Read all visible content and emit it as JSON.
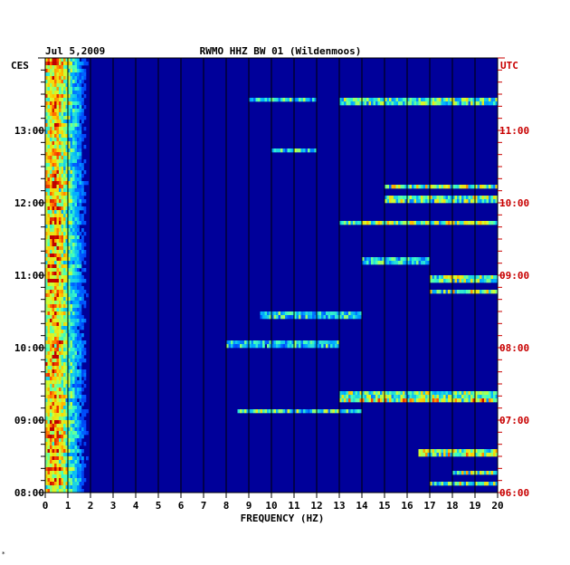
{
  "header": {
    "date": "Jul 5,2009",
    "station": "RWMO HHZ BW 01 (Wildenmoos)"
  },
  "chart_data": {
    "type": "heatmap",
    "title": "RWMO HHZ BW 01 (Wildenmoos)",
    "date": "Jul 5,2009",
    "xlabel": "FREQUENCY (HZ)",
    "xlim": [
      0,
      20
    ],
    "x_ticks": [
      "0",
      "1",
      "2",
      "3",
      "4",
      "5",
      "6",
      "7",
      "8",
      "9",
      "10",
      "11",
      "12",
      "13",
      "14",
      "15",
      "16",
      "17",
      "18",
      "19",
      "20"
    ],
    "left_axis": {
      "label": "CES",
      "ticks": [
        {
          "label": "08:00",
          "hours_above_bottom": 0
        },
        {
          "label": "09:00",
          "hours_above_bottom": 1
        },
        {
          "label": "10:00",
          "hours_above_bottom": 2
        },
        {
          "label": "11:00",
          "hours_above_bottom": 3
        },
        {
          "label": "12:00",
          "hours_above_bottom": 4
        },
        {
          "label": "13:00",
          "hours_above_bottom": 5
        }
      ]
    },
    "right_axis": {
      "label": "UTC",
      "ticks": [
        {
          "label": "06:00",
          "hours_above_bottom": 0
        },
        {
          "label": "07:00",
          "hours_above_bottom": 1
        },
        {
          "label": "08:00",
          "hours_above_bottom": 2
        },
        {
          "label": "09:00",
          "hours_above_bottom": 3
        },
        {
          "label": "10:00",
          "hours_above_bottom": 4
        },
        {
          "label": "11:00",
          "hours_above_bottom": 5
        }
      ]
    },
    "time_span_hours": 6,
    "vertical_grid_hz": [
      1,
      2,
      3,
      4,
      5,
      6,
      7,
      8,
      9,
      10,
      11,
      12,
      13,
      14,
      15,
      16,
      17,
      18,
      19
    ],
    "colormap": [
      "#00008c",
      "#0018c8",
      "#0050ff",
      "#00b0ff",
      "#40ffc0",
      "#d0ff30",
      "#ffd000",
      "#ff5000",
      "#c00000"
    ],
    "low_freq_energy": {
      "band_hz": [
        0,
        2
      ],
      "peak_hz": 0.4,
      "description_level": "high"
    },
    "bright_lines": [
      {
        "hours_above_bottom": 0.13,
        "hz": [
          17,
          20
        ],
        "level": 0.55
      },
      {
        "hours_above_bottom": 0.28,
        "hz": [
          18,
          20
        ],
        "level": 0.6
      },
      {
        "hours_above_bottom": 0.55,
        "hz": [
          16.5,
          20
        ],
        "level": 0.65
      },
      {
        "hours_above_bottom": 1.12,
        "hz": [
          8.5,
          14
        ],
        "level": 0.5
      },
      {
        "hours_above_bottom": 1.28,
        "hz": [
          13,
          20
        ],
        "level": 0.75
      },
      {
        "hours_above_bottom": 1.35,
        "hz": [
          13,
          20
        ],
        "level": 0.55
      },
      {
        "hours_above_bottom": 2.05,
        "hz": [
          8,
          13
        ],
        "level": 0.4
      },
      {
        "hours_above_bottom": 2.45,
        "hz": [
          9.5,
          14
        ],
        "level": 0.4
      },
      {
        "hours_above_bottom": 2.78,
        "hz": [
          17,
          20
        ],
        "level": 0.6
      },
      {
        "hours_above_bottom": 2.95,
        "hz": [
          17,
          20
        ],
        "level": 0.55
      },
      {
        "hours_above_bottom": 3.2,
        "hz": [
          14,
          17
        ],
        "level": 0.4
      },
      {
        "hours_above_bottom": 3.73,
        "hz": [
          13,
          20
        ],
        "level": 0.6
      },
      {
        "hours_above_bottom": 4.05,
        "hz": [
          15,
          20
        ],
        "level": 0.55
      },
      {
        "hours_above_bottom": 4.23,
        "hz": [
          15,
          20
        ],
        "level": 0.6
      },
      {
        "hours_above_bottom": 4.72,
        "hz": [
          10,
          12
        ],
        "level": 0.4
      },
      {
        "hours_above_bottom": 5.4,
        "hz": [
          13,
          20
        ],
        "level": 0.5
      },
      {
        "hours_above_bottom": 5.42,
        "hz": [
          9,
          12
        ],
        "level": 0.4
      }
    ]
  }
}
